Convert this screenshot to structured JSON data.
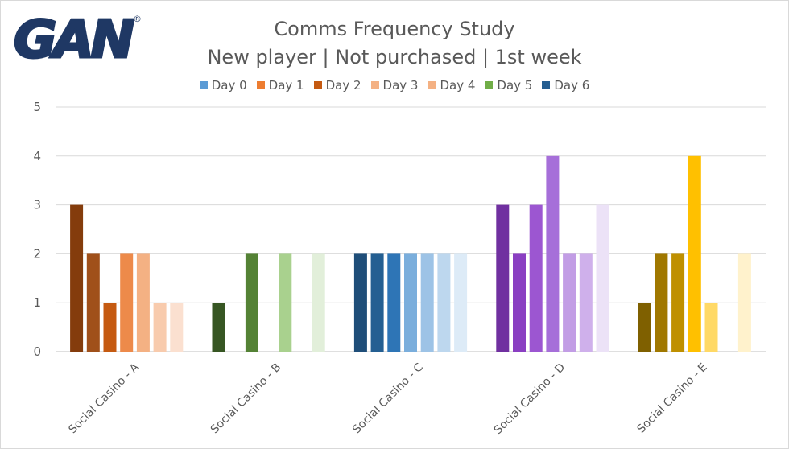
{
  "header": {
    "logo_text": "GAN",
    "logo_mark": "®",
    "title_line1": "Comms Frequency Study",
    "title_line2": "New player | Not purchased  | 1st week"
  },
  "legend": [
    {
      "label": "Day 0",
      "color": "#5b9bd5"
    },
    {
      "label": "Day 1",
      "color": "#ed7d31"
    },
    {
      "label": "Day 2",
      "color": "#c55a11"
    },
    {
      "label": "Day 3",
      "color": "#f4b183"
    },
    {
      "label": "Day 4",
      "color": "#f4b183"
    },
    {
      "label": "Day 5",
      "color": "#70ad47"
    },
    {
      "label": "Day 6",
      "color": "#255e91"
    }
  ],
  "chart_data": {
    "type": "bar",
    "title": "Comms Frequency Study",
    "subtitle": "New player | Not purchased  | 1st week",
    "categories": [
      "Social Casino - A",
      "Social Casino - B",
      "Social Casino - C",
      "Social Casino - D",
      "Social Casino - E"
    ],
    "series": [
      {
        "name": "Day 0",
        "values": [
          3,
          1,
          2,
          3,
          1
        ]
      },
      {
        "name": "Day 1",
        "values": [
          2,
          0,
          2,
          2,
          2
        ]
      },
      {
        "name": "Day 2",
        "values": [
          1,
          2,
          2,
          3,
          2
        ]
      },
      {
        "name": "Day 3",
        "values": [
          2,
          0,
          2,
          4,
          4
        ]
      },
      {
        "name": "Day 4",
        "values": [
          2,
          2,
          2,
          2,
          1
        ]
      },
      {
        "name": "Day 5",
        "values": [
          1,
          0,
          2,
          2,
          0
        ]
      },
      {
        "name": "Day 6",
        "values": [
          1,
          2,
          2,
          3,
          2
        ]
      }
    ],
    "bar_colors": [
      [
        "#843c0c",
        "#a0501a",
        "#c55a11",
        "#ed8a4a",
        "#f4b183",
        "#f8cbad",
        "#fbe0d0"
      ],
      [
        "#375623",
        "#4e7a32",
        "#548235",
        "#70ad47",
        "#a9d18e",
        "#c5e0b4",
        "#e2efda"
      ],
      [
        "#1f4e79",
        "#245f92",
        "#2e75b6",
        "#7aaedc",
        "#9dc3e6",
        "#bdd7ee",
        "#ddebf7"
      ],
      [
        "#7030a0",
        "#8a3fc2",
        "#9c56d1",
        "#a66fd9",
        "#c29de5",
        "#cfb0eb",
        "#ece2f7"
      ],
      [
        "#7f6000",
        "#a07800",
        "#bf9000",
        "#ffc000",
        "#ffd966",
        "#ffe699",
        "#fff2cc"
      ]
    ],
    "yticks": [
      "0",
      "1",
      "2",
      "3",
      "4",
      "5"
    ],
    "ylim": [
      0,
      5
    ],
    "grid": true,
    "legend_position": "top-center"
  }
}
